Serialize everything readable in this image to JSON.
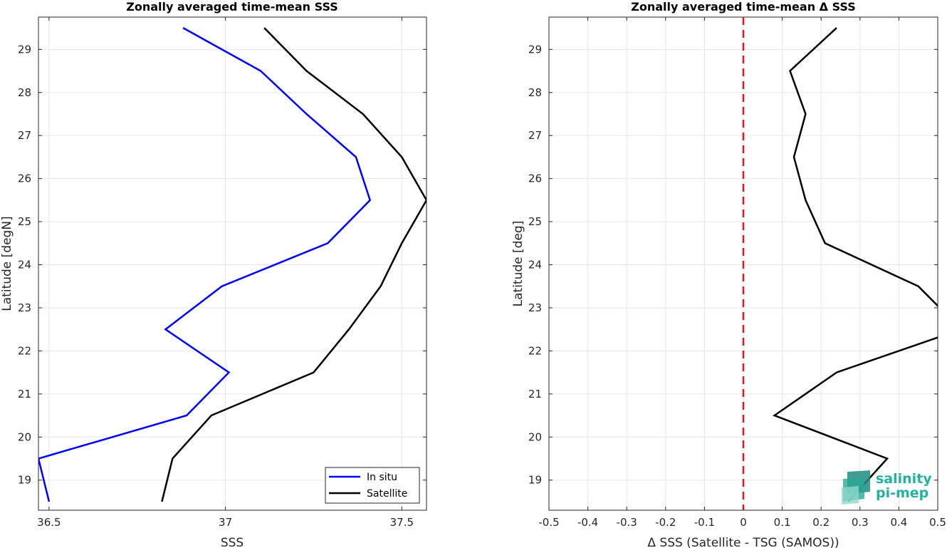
{
  "chart_data": [
    {
      "type": "line",
      "title": "Zonally averaged time-mean SSS",
      "xlabel": "SSS",
      "ylabel": "Latitude [degN]",
      "xlim": [
        36.47,
        37.57
      ],
      "ylim": [
        18.3,
        29.75
      ],
      "xticks": [
        36.5,
        37,
        37.5
      ],
      "xtick_labels": [
        "36.5",
        "37",
        "37.5"
      ],
      "yticks": [
        19,
        20,
        21,
        22,
        23,
        24,
        25,
        26,
        27,
        28,
        29
      ],
      "ytick_labels": [
        "19",
        "20",
        "21",
        "22",
        "23",
        "24",
        "25",
        "26",
        "27",
        "28",
        "29"
      ],
      "grid": true,
      "legend_position": "bottom-right",
      "series": [
        {
          "name": "In situ",
          "color": "#0000ff",
          "points": [
            [
              36.5,
              18.5
            ],
            [
              36.47,
              19.5
            ],
            [
              36.89,
              20.5
            ],
            [
              37.01,
              21.5
            ],
            [
              36.83,
              22.5
            ],
            [
              36.99,
              23.5
            ],
            [
              37.29,
              24.5
            ],
            [
              37.41,
              25.5
            ],
            [
              37.37,
              26.5
            ],
            [
              37.23,
              27.5
            ],
            [
              37.1,
              28.5
            ],
            [
              36.88,
              29.5
            ]
          ]
        },
        {
          "name": "Satellite",
          "color": "#000000",
          "points": [
            [
              36.82,
              18.5
            ],
            [
              36.85,
              19.5
            ],
            [
              36.96,
              20.5
            ],
            [
              37.25,
              21.5
            ],
            [
              37.35,
              22.5
            ],
            [
              37.44,
              23.5
            ],
            [
              37.5,
              24.5
            ],
            [
              37.57,
              25.5
            ],
            [
              37.5,
              26.5
            ],
            [
              37.39,
              27.5
            ],
            [
              37.23,
              28.5
            ],
            [
              37.11,
              29.5
            ]
          ]
        }
      ]
    },
    {
      "type": "line",
      "title": "Zonally averaged time-mean Δ SSS",
      "xlabel": "Δ SSS (Satellite - TSG (SAMOS))",
      "ylabel": "Latitude [deg]",
      "xlim": [
        -0.5,
        0.5
      ],
      "ylim": [
        18.3,
        29.75
      ],
      "xticks": [
        -0.5,
        -0.4,
        -0.3,
        -0.2,
        -0.1,
        0,
        0.1,
        0.2,
        0.3,
        0.4,
        0.5
      ],
      "xtick_labels": [
        "-0.5",
        "-0.4",
        "-0.3",
        "-0.2",
        "-0.1",
        "0",
        "0.1",
        "0.2",
        "0.3",
        "0.4",
        "0.5"
      ],
      "yticks": [
        19,
        20,
        21,
        22,
        23,
        24,
        25,
        26,
        27,
        28,
        29
      ],
      "ytick_labels": [
        "19",
        "20",
        "21",
        "22",
        "23",
        "24",
        "25",
        "26",
        "27",
        "28",
        "29"
      ],
      "grid": true,
      "reference_line": {
        "x": 0,
        "color": "#e8161b",
        "style": "dashed"
      },
      "series": [
        {
          "color": "#000000",
          "points": [
            [
              0.27,
              18.5
            ],
            [
              0.37,
              19.5
            ],
            [
              0.08,
              20.5
            ],
            [
              0.24,
              21.5
            ],
            [
              0.56,
              22.5
            ],
            [
              0.45,
              23.5
            ],
            [
              0.21,
              24.5
            ],
            [
              0.16,
              25.5
            ],
            [
              0.13,
              26.5
            ],
            [
              0.16,
              27.5
            ],
            [
              0.12,
              28.5
            ],
            [
              0.24,
              29.5
            ]
          ]
        }
      ]
    }
  ],
  "logo": {
    "line1": "salinity",
    "line2": "pi-mep",
    "color": "#22b3a0"
  }
}
